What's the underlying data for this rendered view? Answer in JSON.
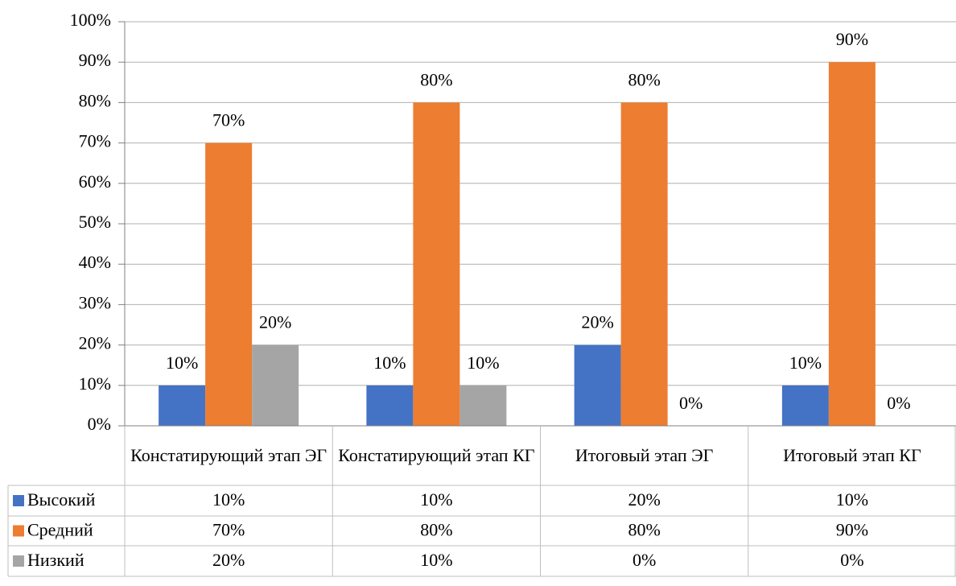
{
  "chart_data": {
    "type": "bar",
    "categories": [
      "Констатирующий этап ЭГ",
      "Констатирующий этап КГ",
      "Итоговый этап ЭГ",
      "Итоговый этап КГ"
    ],
    "series": [
      {
        "name": "Высокий",
        "color": "#4472c4",
        "values": [
          10,
          10,
          20,
          10
        ],
        "value_labels": [
          "10%",
          "10%",
          "20%",
          "10%"
        ]
      },
      {
        "name": "Средний",
        "color": "#ed7d31",
        "values": [
          70,
          80,
          80,
          90
        ],
        "value_labels": [
          "70%",
          "80%",
          "80%",
          "90%"
        ]
      },
      {
        "name": "Низкий",
        "color": "#a5a5a5",
        "values": [
          20,
          10,
          0,
          0
        ],
        "value_labels": [
          "20%",
          "10%",
          "0%",
          "0%"
        ]
      }
    ],
    "ylim": [
      0,
      100
    ],
    "yticks": [
      {
        "value": 0,
        "label": "0%"
      },
      {
        "value": 10,
        "label": "10%"
      },
      {
        "value": 20,
        "label": "20%"
      },
      {
        "value": 30,
        "label": "30%"
      },
      {
        "value": 40,
        "label": "40%"
      },
      {
        "value": 50,
        "label": "50%"
      },
      {
        "value": 60,
        "label": "60%"
      },
      {
        "value": 70,
        "label": "70%"
      },
      {
        "value": 80,
        "label": "80%"
      },
      {
        "value": 90,
        "label": "90%"
      },
      {
        "value": 100,
        "label": "100%"
      }
    ],
    "grid": true,
    "data_table": true
  }
}
